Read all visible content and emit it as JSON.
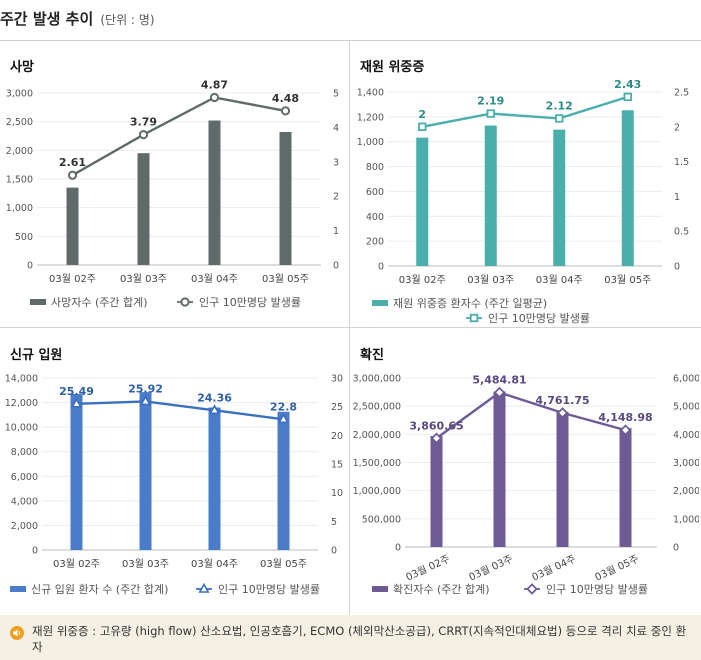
{
  "header": {
    "title": "주간 발생 추이",
    "unit": "(단위 : 명)"
  },
  "footnote": {
    "text": "재원 위중증 : 고유량 (high flow) 산소요법, 인공호흡기, ECMO (체외막산소공급), CRRT(지속적인대체요법) 등으로 격리 치료 중인 환자"
  },
  "chart_data": [
    {
      "id": "deaths",
      "type": "bar",
      "title": "사망",
      "categories": [
        "03월 02주",
        "03월 03주",
        "03월 04주",
        "03월 05주"
      ],
      "bar": {
        "name": "사망자수 (주간 합계)",
        "values": [
          1350,
          1950,
          2520,
          2320
        ],
        "color": "#5f6b6b"
      },
      "line": {
        "name": "인구 10만명당 발생률",
        "values": [
          2.61,
          3.79,
          4.87,
          4.48
        ],
        "labels": [
          "2.61",
          "3.79",
          "4.87",
          "4.48"
        ],
        "color": "#5f6b6b",
        "marker": "circle"
      },
      "y_left": {
        "min": 0,
        "max": 3000,
        "ticks": [
          "0",
          "500",
          "1,000",
          "1,500",
          "2,000",
          "2,500",
          "3,000"
        ]
      },
      "y_right": {
        "min": 0,
        "max": 5,
        "ticks": [
          "0",
          "1",
          "2",
          "3",
          "4",
          "5"
        ]
      },
      "label_color": "#333333",
      "tilted_x": false
    },
    {
      "id": "critical",
      "type": "bar",
      "title": "재원 위중증",
      "categories": [
        "03월 02주",
        "03월 03주",
        "03월 04주",
        "03월 05주"
      ],
      "bar": {
        "name": "재원 위중증 환자수 (주간 일평균)",
        "values": [
          1033,
          1130,
          1097,
          1253
        ],
        "color": "#4aaeab"
      },
      "line": {
        "name": "인구 10만명당 발생률",
        "values": [
          2.0,
          2.19,
          2.12,
          2.43
        ],
        "labels": [
          "2",
          "2.19",
          "2.12",
          "2.43"
        ],
        "color": "#4aaeab",
        "marker": "square"
      },
      "y_left": {
        "min": 0,
        "max": 1400,
        "ticks": [
          "0",
          "200",
          "400",
          "600",
          "800",
          "1,000",
          "1,200",
          "1,400"
        ]
      },
      "y_right": {
        "min": 0,
        "max": 2.5,
        "ticks": [
          "0",
          "0.5",
          "1",
          "1.5",
          "2",
          "2.5"
        ]
      },
      "label_color": "#2a8c89",
      "tilted_x": false
    },
    {
      "id": "admissions",
      "type": "bar",
      "title": "신규 입원",
      "categories": [
        "03월 02주",
        "03월 03주",
        "03월 04주",
        "03월 05주"
      ],
      "bar": {
        "name": "신규 입원 환자 수 (주간 합계)",
        "values": [
          12700,
          12850,
          11600,
          11250
        ],
        "color": "#4a7cc9"
      },
      "line": {
        "name": "인구 10만명당 발생률",
        "values": [
          25.49,
          25.92,
          24.36,
          22.8
        ],
        "labels": [
          "25.49",
          "25.92",
          "24.36",
          "22.8"
        ],
        "color": "#3b6fc0",
        "marker": "triangle"
      },
      "y_left": {
        "min": 0,
        "max": 14000,
        "ticks": [
          "0",
          "2,000",
          "4,000",
          "6,000",
          "8,000",
          "10,000",
          "12,000",
          "14,000"
        ]
      },
      "y_right": {
        "min": 0,
        "max": 30,
        "ticks": [
          "0",
          "5",
          "10",
          "15",
          "20",
          "25",
          "30"
        ]
      },
      "label_color": "#2f5fa8",
      "tilted_x": false
    },
    {
      "id": "confirmed",
      "type": "bar",
      "title": "확진",
      "categories": [
        "03월 02주",
        "03월 03주",
        "03월 04주",
        "03월 05주"
      ],
      "bar": {
        "name": "확진자수 (주간 합계)",
        "values": [
          1970000,
          2760000,
          2400000,
          2110000
        ],
        "color": "#6e5b96"
      },
      "line": {
        "name": "인구 10만명당 발생률",
        "values": [
          3860.65,
          5484.81,
          4761.75,
          4148.98
        ],
        "labels": [
          "3,860.65",
          "5,484.81",
          "4,761.75",
          "4,148.98"
        ],
        "color": "#6e5b96",
        "marker": "diamond"
      },
      "y_left": {
        "min": 0,
        "max": 3000000,
        "ticks": [
          "0",
          "500,000",
          "1,000,000",
          "1,500,000",
          "2,000,000",
          "2,500,000",
          "3,000,000"
        ]
      },
      "y_right": {
        "min": 0,
        "max": 6000,
        "ticks": [
          "0",
          "1,000",
          "2,000",
          "3,000",
          "4,000",
          "5,000",
          "6,000"
        ]
      },
      "label_color": "#5a4880",
      "tilted_x": true
    }
  ]
}
